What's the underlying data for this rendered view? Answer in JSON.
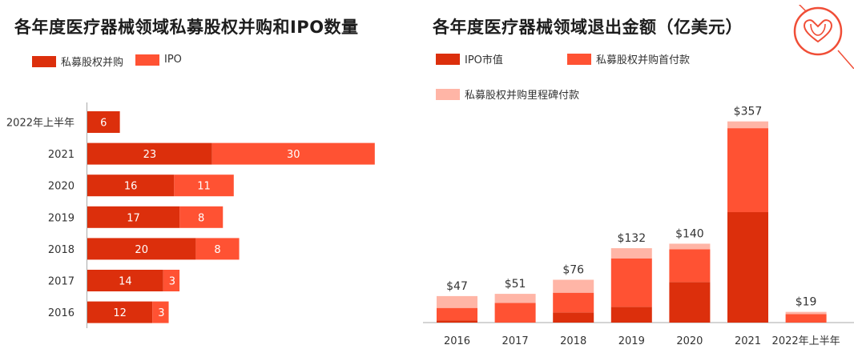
{
  "colors": {
    "pe_ma": "#dc2f0c",
    "ipo": "#ff5233",
    "ipo_value": "#dc2f0c",
    "upfront": "#ff5233",
    "milestone": "#ffb5a6",
    "axis": "#aaaaaa",
    "logo": "#f04e37"
  },
  "logo": {
    "icon": "heart-stethoscope-icon"
  },
  "chart_data": [
    {
      "type": "bar",
      "orientation": "horizontal",
      "stacked": true,
      "title": "各年度医疗器械领域私募股权并购和IPO数量",
      "legend_position": "top-left",
      "categories": [
        "2022年上半年",
        "2021",
        "2020",
        "2019",
        "2018",
        "2017",
        "2016"
      ],
      "series": [
        {
          "name": "私募股权并购",
          "values": [
            6,
            23,
            16,
            17,
            20,
            14,
            12
          ]
        },
        {
          "name": "IPO",
          "values": [
            null,
            30,
            11,
            8,
            8,
            3,
            3
          ]
        }
      ],
      "xlim": [
        0,
        55
      ]
    },
    {
      "type": "bar",
      "stacked": true,
      "title": "各年度医疗器械领域退出金额（亿美元）",
      "legend_position": "top-left",
      "categories": [
        "2016",
        "2017",
        "2018",
        "2019",
        "2020",
        "2021",
        "2022年上半年"
      ],
      "totals": [
        "$47",
        "$51",
        "$76",
        "$132",
        "$140",
        "$357",
        "$19"
      ],
      "series": [
        {
          "name": "IPO市值",
          "values": [
            4,
            0,
            18,
            28,
            72,
            196,
            0
          ]
        },
        {
          "name": "私募股权并购首付款",
          "values": [
            22,
            35,
            35,
            86,
            58,
            149,
            15
          ]
        },
        {
          "name": "私募股权并购里程碑付款",
          "values": [
            21,
            16,
            23,
            18,
            10,
            12,
            4
          ]
        }
      ],
      "ylim": [
        0,
        357
      ]
    }
  ]
}
